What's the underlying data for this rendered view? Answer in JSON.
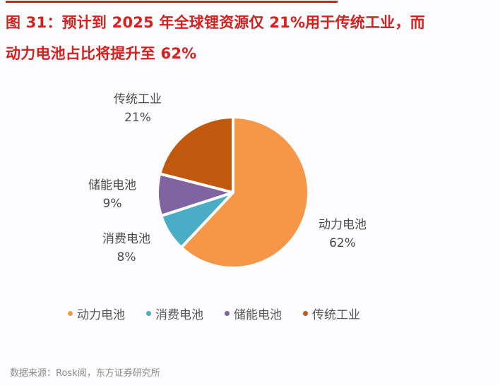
{
  "title": {
    "line1": "图 31：预计到 2025 年全球锂资源仅 21%用于传统工业，而",
    "line2": "动力电池占比将提升至 62%"
  },
  "chart_data": {
    "type": "pie",
    "title": "预计到 2025 年全球锂资源仅 21%用于传统工业，而动力电池占比将提升至 62%",
    "categories": [
      "动力电池",
      "消费电池",
      "储能电池",
      "传统工业"
    ],
    "values": [
      62,
      8,
      9,
      21
    ],
    "unit": "%",
    "colors": [
      "#f79646",
      "#4bacc6",
      "#8064a2",
      "#c0590e"
    ],
    "start_angle_deg": 0,
    "direction": "clockwise",
    "legend_position": "bottom",
    "data_labels": [
      {
        "name": "动力电池",
        "value": "62%"
      },
      {
        "name": "消费电池",
        "value": "8%"
      },
      {
        "name": "储能电池",
        "value": "9%"
      },
      {
        "name": "传统工业",
        "value": "21%"
      }
    ]
  },
  "legend": [
    {
      "label": "动力电池",
      "color": "#f79646"
    },
    {
      "label": "消费电池",
      "color": "#4bacc6"
    },
    {
      "label": "储能电池",
      "color": "#8064a2"
    },
    {
      "label": "传统工业",
      "color": "#c0590e"
    }
  ],
  "source": "数据来源：Rosk阅，东方证券研究所"
}
